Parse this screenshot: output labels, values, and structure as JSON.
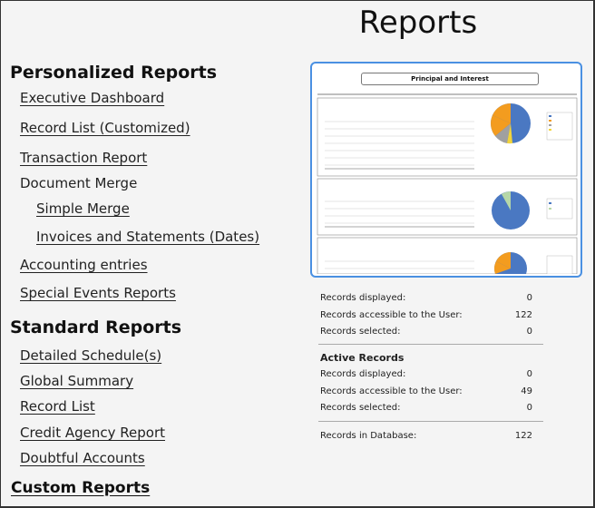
{
  "page_title": "Reports",
  "personalized": {
    "title": "Personalized Reports",
    "items": [
      {
        "label": "Executive Dashboard",
        "link": true
      },
      {
        "label": "Record List (Customized)",
        "link": true
      },
      {
        "label": "Transaction Report",
        "link": true
      },
      {
        "label": "Document Merge",
        "link": false
      },
      {
        "label": "Simple Merge",
        "link": true
      },
      {
        "label": "Invoices and Statements (Dates)",
        "link": true
      },
      {
        "label": "Accounting entries",
        "link": true
      },
      {
        "label": "Special Events Reports",
        "link": true
      }
    ]
  },
  "standard": {
    "title": "Standard Reports",
    "items": [
      {
        "label": "Detailed Schedule(s)"
      },
      {
        "label": "Global Summary"
      },
      {
        "label": "Record List"
      },
      {
        "label": "Credit Agency Report"
      },
      {
        "label": "Doubtful Accounts"
      }
    ]
  },
  "custom_reports": "Custom Reports",
  "thumbnail": {
    "title": "Principal and Interest"
  },
  "stats": {
    "records_displayed_label": "Records displayed:",
    "records_displayed_value": "0",
    "records_accessible_label": "Records accessible to the User:",
    "records_accessible_value": "122",
    "records_selected_label": "Records selected:",
    "records_selected_value": "0",
    "active_records_title": "Active Records",
    "active_displayed_label": "Records displayed:",
    "active_displayed_value": "0",
    "active_accessible_label": "Records accessible to the User:",
    "active_accessible_value": "49",
    "active_selected_label": "Records selected:",
    "active_selected_value": "0",
    "db_label": "Records in Database:",
    "db_value": "122"
  },
  "colors": {
    "pie_blue": "#4a78c2",
    "pie_orange": "#f39c1f",
    "pie_gray": "#a0a0a0",
    "pie_green": "#b6d7a8",
    "pie_yellow": "#f2d43b",
    "thumb_border": "#4a90e2"
  }
}
